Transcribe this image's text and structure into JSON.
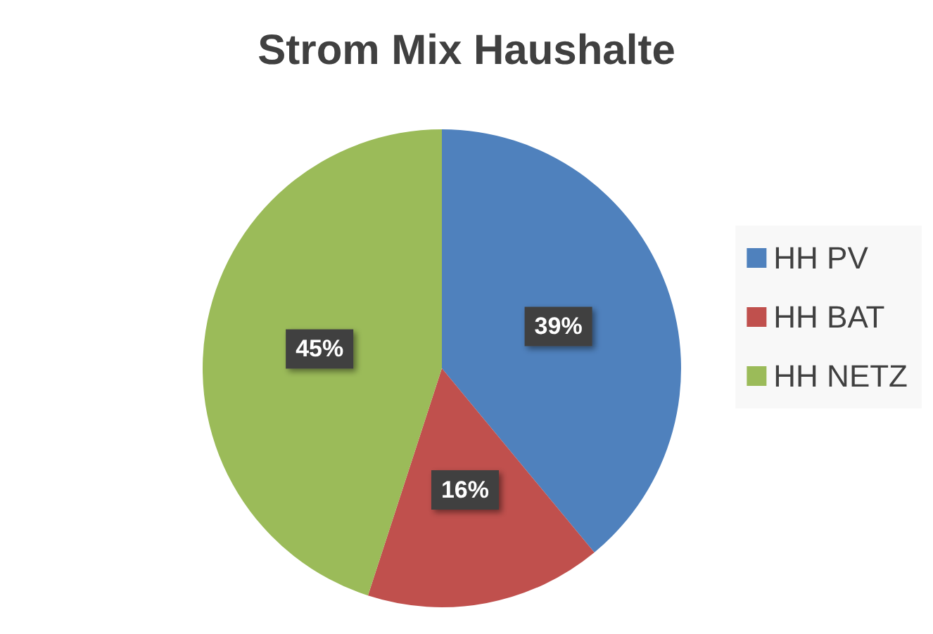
{
  "chart_data": {
    "type": "pie",
    "title": "Strom Mix Haushalte",
    "categories": [
      "HH PV",
      "HH BAT",
      "HH NETZ"
    ],
    "values": [
      39,
      16,
      45
    ],
    "colors": [
      "#4f81bd",
      "#c0504d",
      "#9bbb59"
    ],
    "value_labels": [
      "39%",
      "16%",
      "45%"
    ],
    "legend": "right"
  }
}
